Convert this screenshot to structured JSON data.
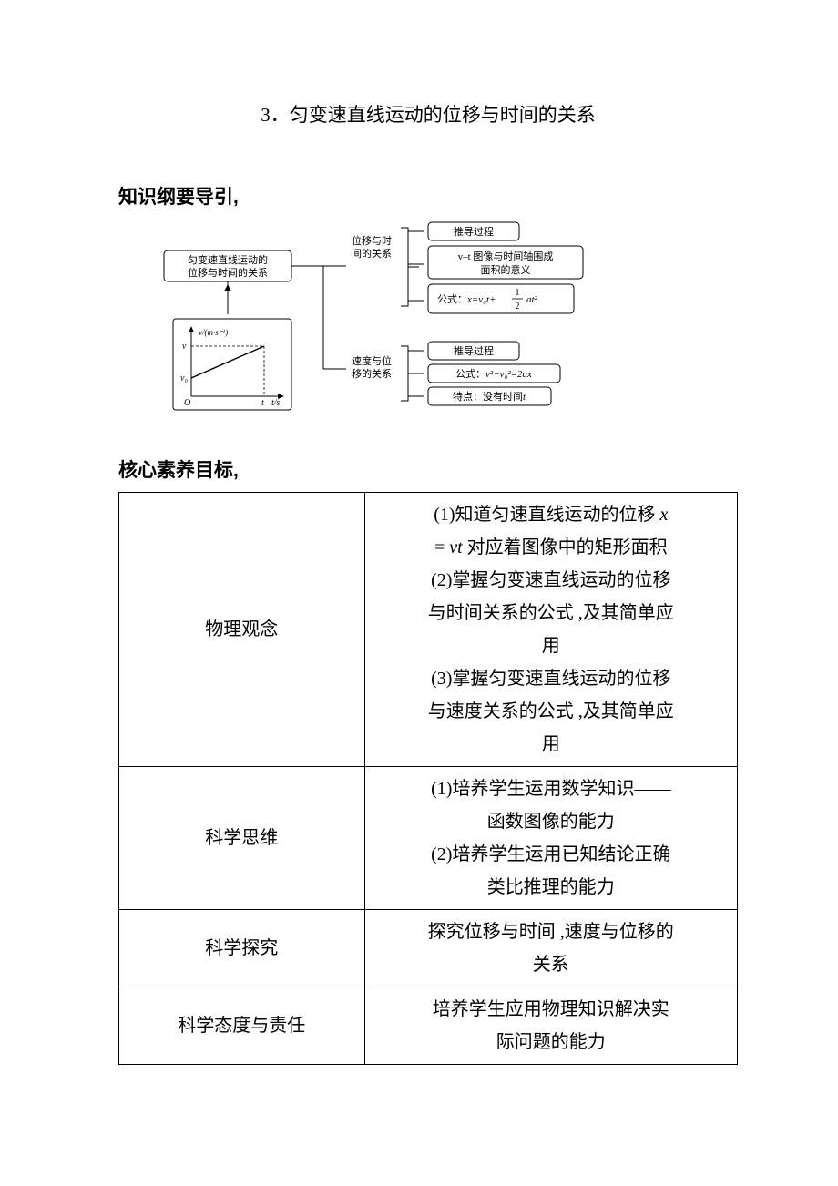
{
  "title": "3．匀变速直线运动的位移与时间的关系",
  "heading1": "知识纲要导引,",
  "heading2": "核心素养目标,",
  "diagram": {
    "root_box": "匀变速直线运动的\n位移与时间的关系",
    "branch1_label": "位移与时\n间的关系",
    "branch1_items": [
      "推导过程",
      "v–t 图像与时间轴围成\n面积的意义",
      "公式：x=v₀t+\\frac{1}{2}at²"
    ],
    "branch2_label": "速度与位\n移的关系",
    "branch2_items": [
      "推导过程",
      "公式：v²−v₀²=2ax",
      "特点：没有时间t"
    ],
    "graph": {
      "y_label": "v/(m·s⁻¹)",
      "x_label": "t/s",
      "origin": "O",
      "y_tick_upper": "v",
      "y_tick_lower": "v₀",
      "x_tick": "t"
    },
    "colors": {
      "box_border": "#000000",
      "box_fill": "#ffffff",
      "line": "#000000",
      "text": "#000000"
    },
    "font_size_small": 10,
    "font_size_box": 11
  },
  "objectives": {
    "rows": [
      {
        "label": "物理观念",
        "desc_html": "(1)知道匀速直线运动的位移 <span class=\"italic\">x</span><br>= <span class=\"italic\">vt</span> 对应着图像中的矩形面积<br>(2)掌握匀变速直线运动的位移<br>与时间关系的公式 ,及其简单应<br>用<br>(3)掌握匀变速直线运动的位移<br>与速度关系的公式 ,及其简单应<br>用"
      },
      {
        "label": "科学思维",
        "desc_html": "(1)培养学生运用数学知识——<br>函数图像的能力<br>(2)培养学生运用已知结论正确<br>类比推理的能力"
      },
      {
        "label": "科学探究",
        "desc_html": "探究位移与时间 ,速度与位移的<br>关系"
      },
      {
        "label": "科学态度与责任",
        "desc_html": "培养学生应用物理知识解决实<br>际问题的能力"
      }
    ]
  }
}
